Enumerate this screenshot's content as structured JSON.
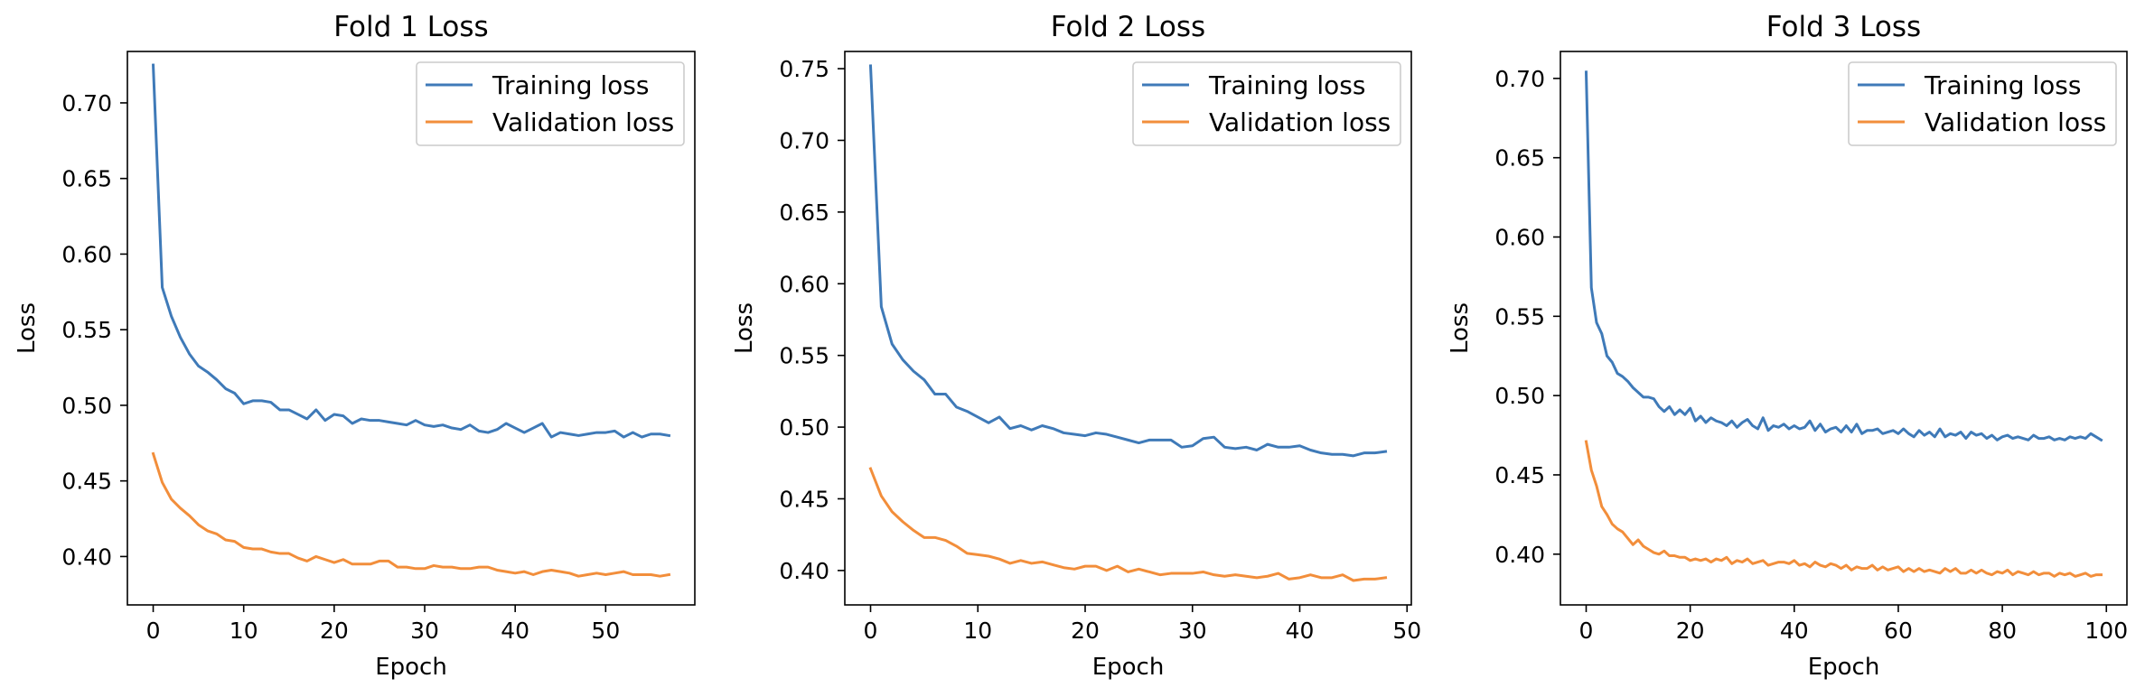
{
  "chart_data": [
    {
      "type": "line",
      "title": "Fold 1 Loss",
      "xlabel": "Epoch",
      "ylabel": "Loss",
      "xlim": [
        -2.85,
        59.85
      ],
      "ylim": [
        0.368,
        0.734
      ],
      "xticks": [
        0,
        10,
        20,
        30,
        40,
        50
      ],
      "yticks": [
        0.4,
        0.45,
        0.5,
        0.55,
        0.6,
        0.65,
        0.7
      ],
      "grid": false,
      "legend": "top-right",
      "series": [
        {
          "name": "Training loss",
          "color": "#3f7ab8",
          "x": [
            0,
            1,
            2,
            3,
            4,
            5,
            6,
            7,
            8,
            9,
            10,
            11,
            12,
            13,
            14,
            15,
            16,
            17,
            18,
            19,
            20,
            21,
            22,
            23,
            24,
            25,
            26,
            27,
            28,
            29,
            30,
            31,
            32,
            33,
            34,
            35,
            36,
            37,
            38,
            39,
            40,
            41,
            42,
            43,
            44,
            45,
            46,
            47,
            48,
            49,
            50,
            51,
            52,
            53,
            54,
            55,
            56,
            57
          ],
          "values": [
            0.725,
            0.578,
            0.559,
            0.545,
            0.534,
            0.526,
            0.522,
            0.517,
            0.511,
            0.508,
            0.501,
            0.503,
            0.503,
            0.502,
            0.497,
            0.497,
            0.494,
            0.491,
            0.497,
            0.49,
            0.494,
            0.493,
            0.488,
            0.491,
            0.49,
            0.49,
            0.489,
            0.488,
            0.487,
            0.49,
            0.487,
            0.486,
            0.487,
            0.485,
            0.484,
            0.487,
            0.483,
            0.482,
            0.484,
            0.488,
            0.485,
            0.482,
            0.485,
            0.488,
            0.479,
            0.482,
            0.481,
            0.48,
            0.481,
            0.482,
            0.482,
            0.483,
            0.479,
            0.482,
            0.479,
            0.481,
            0.481,
            0.48
          ]
        },
        {
          "name": "Validation loss",
          "color": "#f28e3b",
          "x": [
            0,
            1,
            2,
            3,
            4,
            5,
            6,
            7,
            8,
            9,
            10,
            11,
            12,
            13,
            14,
            15,
            16,
            17,
            18,
            19,
            20,
            21,
            22,
            23,
            24,
            25,
            26,
            27,
            28,
            29,
            30,
            31,
            32,
            33,
            34,
            35,
            36,
            37,
            38,
            39,
            40,
            41,
            42,
            43,
            44,
            45,
            46,
            47,
            48,
            49,
            50,
            51,
            52,
            53,
            54,
            55,
            56,
            57
          ],
          "values": [
            0.468,
            0.449,
            0.438,
            0.432,
            0.427,
            0.421,
            0.417,
            0.415,
            0.411,
            0.41,
            0.406,
            0.405,
            0.405,
            0.403,
            0.402,
            0.402,
            0.399,
            0.397,
            0.4,
            0.398,
            0.396,
            0.398,
            0.395,
            0.395,
            0.395,
            0.397,
            0.397,
            0.393,
            0.393,
            0.392,
            0.392,
            0.394,
            0.393,
            0.393,
            0.392,
            0.392,
            0.393,
            0.393,
            0.391,
            0.39,
            0.389,
            0.39,
            0.388,
            0.39,
            0.391,
            0.39,
            0.389,
            0.387,
            0.388,
            0.389,
            0.388,
            0.389,
            0.39,
            0.388,
            0.388,
            0.388,
            0.387,
            0.388
          ]
        }
      ]
    },
    {
      "type": "line",
      "title": "Fold 2 Loss",
      "xlabel": "Epoch",
      "ylabel": "Loss",
      "xlim": [
        -2.4,
        50.4
      ],
      "ylim": [
        0.376,
        0.762
      ],
      "xticks": [
        0,
        10,
        20,
        30,
        40,
        50
      ],
      "yticks": [
        0.4,
        0.45,
        0.5,
        0.55,
        0.6,
        0.65,
        0.7,
        0.75
      ],
      "grid": false,
      "legend": "top-right",
      "series": [
        {
          "name": "Training loss",
          "color": "#3f7ab8",
          "x": [
            0,
            1,
            2,
            3,
            4,
            5,
            6,
            7,
            8,
            9,
            10,
            11,
            12,
            13,
            14,
            15,
            16,
            17,
            18,
            19,
            20,
            21,
            22,
            23,
            24,
            25,
            26,
            27,
            28,
            29,
            30,
            31,
            32,
            33,
            34,
            35,
            36,
            37,
            38,
            39,
            40,
            41,
            42,
            43,
            44,
            45,
            46,
            47,
            48
          ],
          "values": [
            0.752,
            0.584,
            0.558,
            0.547,
            0.539,
            0.533,
            0.523,
            0.523,
            0.514,
            0.511,
            0.507,
            0.503,
            0.507,
            0.499,
            0.501,
            0.498,
            0.501,
            0.499,
            0.496,
            0.495,
            0.494,
            0.496,
            0.495,
            0.493,
            0.491,
            0.489,
            0.491,
            0.491,
            0.491,
            0.486,
            0.487,
            0.492,
            0.493,
            0.486,
            0.485,
            0.486,
            0.484,
            0.488,
            0.486,
            0.486,
            0.487,
            0.484,
            0.482,
            0.481,
            0.481,
            0.48,
            0.482,
            0.482,
            0.483
          ]
        },
        {
          "name": "Validation loss",
          "color": "#f28e3b",
          "x": [
            0,
            1,
            2,
            3,
            4,
            5,
            6,
            7,
            8,
            9,
            10,
            11,
            12,
            13,
            14,
            15,
            16,
            17,
            18,
            19,
            20,
            21,
            22,
            23,
            24,
            25,
            26,
            27,
            28,
            29,
            30,
            31,
            32,
            33,
            34,
            35,
            36,
            37,
            38,
            39,
            40,
            41,
            42,
            43,
            44,
            45,
            46,
            47,
            48
          ],
          "values": [
            0.471,
            0.452,
            0.441,
            0.434,
            0.428,
            0.423,
            0.423,
            0.421,
            0.417,
            0.412,
            0.411,
            0.41,
            0.408,
            0.405,
            0.407,
            0.405,
            0.406,
            0.404,
            0.402,
            0.401,
            0.403,
            0.403,
            0.4,
            0.403,
            0.399,
            0.401,
            0.399,
            0.397,
            0.398,
            0.398,
            0.398,
            0.399,
            0.397,
            0.396,
            0.397,
            0.396,
            0.395,
            0.396,
            0.398,
            0.394,
            0.395,
            0.397,
            0.395,
            0.395,
            0.397,
            0.393,
            0.394,
            0.394,
            0.395
          ]
        }
      ]
    },
    {
      "type": "line",
      "title": "Fold 3 Loss",
      "xlabel": "Epoch",
      "ylabel": "Loss",
      "xlim": [
        -4.95,
        103.95
      ],
      "ylim": [
        0.368,
        0.717
      ],
      "xticks": [
        0,
        20,
        40,
        60,
        80,
        100
      ],
      "yticks": [
        0.4,
        0.45,
        0.5,
        0.55,
        0.6,
        0.65,
        0.7
      ],
      "grid": false,
      "legend": "top-right",
      "series": [
        {
          "name": "Training loss",
          "color": "#3f7ab8",
          "x": [
            0,
            1,
            2,
            3,
            4,
            5,
            6,
            7,
            8,
            9,
            10,
            11,
            12,
            13,
            14,
            15,
            16,
            17,
            18,
            19,
            20,
            21,
            22,
            23,
            24,
            25,
            26,
            27,
            28,
            29,
            30,
            31,
            32,
            33,
            34,
            35,
            36,
            37,
            38,
            39,
            40,
            41,
            42,
            43,
            44,
            45,
            46,
            47,
            48,
            49,
            50,
            51,
            52,
            53,
            54,
            55,
            56,
            57,
            58,
            59,
            60,
            61,
            62,
            63,
            64,
            65,
            66,
            67,
            68,
            69,
            70,
            71,
            72,
            73,
            74,
            75,
            76,
            77,
            78,
            79,
            80,
            81,
            82,
            83,
            84,
            85,
            86,
            87,
            88,
            89,
            90,
            91,
            92,
            93,
            94,
            95,
            96,
            97,
            98,
            99
          ],
          "values": [
            0.704,
            0.568,
            0.546,
            0.539,
            0.525,
            0.521,
            0.514,
            0.512,
            0.509,
            0.505,
            0.502,
            0.499,
            0.499,
            0.498,
            0.493,
            0.49,
            0.493,
            0.488,
            0.491,
            0.488,
            0.492,
            0.484,
            0.487,
            0.483,
            0.486,
            0.484,
            0.483,
            0.481,
            0.484,
            0.48,
            0.483,
            0.485,
            0.481,
            0.479,
            0.486,
            0.478,
            0.481,
            0.48,
            0.482,
            0.479,
            0.481,
            0.479,
            0.48,
            0.484,
            0.478,
            0.482,
            0.477,
            0.479,
            0.48,
            0.477,
            0.481,
            0.477,
            0.482,
            0.476,
            0.478,
            0.478,
            0.479,
            0.476,
            0.477,
            0.478,
            0.476,
            0.479,
            0.476,
            0.474,
            0.478,
            0.475,
            0.477,
            0.474,
            0.479,
            0.474,
            0.476,
            0.475,
            0.477,
            0.473,
            0.477,
            0.475,
            0.476,
            0.473,
            0.475,
            0.472,
            0.474,
            0.475,
            0.473,
            0.474,
            0.473,
            0.472,
            0.475,
            0.473,
            0.473,
            0.474,
            0.472,
            0.473,
            0.472,
            0.474,
            0.473,
            0.474,
            0.473,
            0.476,
            0.474,
            0.472
          ]
        },
        {
          "name": "Validation loss",
          "color": "#f28e3b",
          "x": [
            0,
            1,
            2,
            3,
            4,
            5,
            6,
            7,
            8,
            9,
            10,
            11,
            12,
            13,
            14,
            15,
            16,
            17,
            18,
            19,
            20,
            21,
            22,
            23,
            24,
            25,
            26,
            27,
            28,
            29,
            30,
            31,
            32,
            33,
            34,
            35,
            36,
            37,
            38,
            39,
            40,
            41,
            42,
            43,
            44,
            45,
            46,
            47,
            48,
            49,
            50,
            51,
            52,
            53,
            54,
            55,
            56,
            57,
            58,
            59,
            60,
            61,
            62,
            63,
            64,
            65,
            66,
            67,
            68,
            69,
            70,
            71,
            72,
            73,
            74,
            75,
            76,
            77,
            78,
            79,
            80,
            81,
            82,
            83,
            84,
            85,
            86,
            87,
            88,
            89,
            90,
            91,
            92,
            93,
            94,
            95,
            96,
            97,
            98,
            99
          ],
          "values": [
            0.471,
            0.453,
            0.443,
            0.43,
            0.425,
            0.419,
            0.416,
            0.414,
            0.41,
            0.406,
            0.409,
            0.405,
            0.403,
            0.401,
            0.4,
            0.402,
            0.399,
            0.399,
            0.398,
            0.398,
            0.396,
            0.397,
            0.396,
            0.397,
            0.395,
            0.397,
            0.396,
            0.398,
            0.394,
            0.396,
            0.395,
            0.397,
            0.394,
            0.395,
            0.396,
            0.393,
            0.394,
            0.395,
            0.395,
            0.394,
            0.396,
            0.393,
            0.394,
            0.392,
            0.395,
            0.393,
            0.392,
            0.394,
            0.393,
            0.391,
            0.393,
            0.39,
            0.392,
            0.391,
            0.391,
            0.393,
            0.39,
            0.392,
            0.39,
            0.391,
            0.392,
            0.389,
            0.391,
            0.389,
            0.391,
            0.389,
            0.39,
            0.389,
            0.388,
            0.391,
            0.389,
            0.391,
            0.388,
            0.388,
            0.39,
            0.388,
            0.39,
            0.388,
            0.387,
            0.389,
            0.388,
            0.39,
            0.387,
            0.389,
            0.388,
            0.387,
            0.389,
            0.387,
            0.388,
            0.388,
            0.386,
            0.388,
            0.387,
            0.388,
            0.386,
            0.387,
            0.388,
            0.386,
            0.387,
            0.387
          ]
        }
      ]
    }
  ]
}
